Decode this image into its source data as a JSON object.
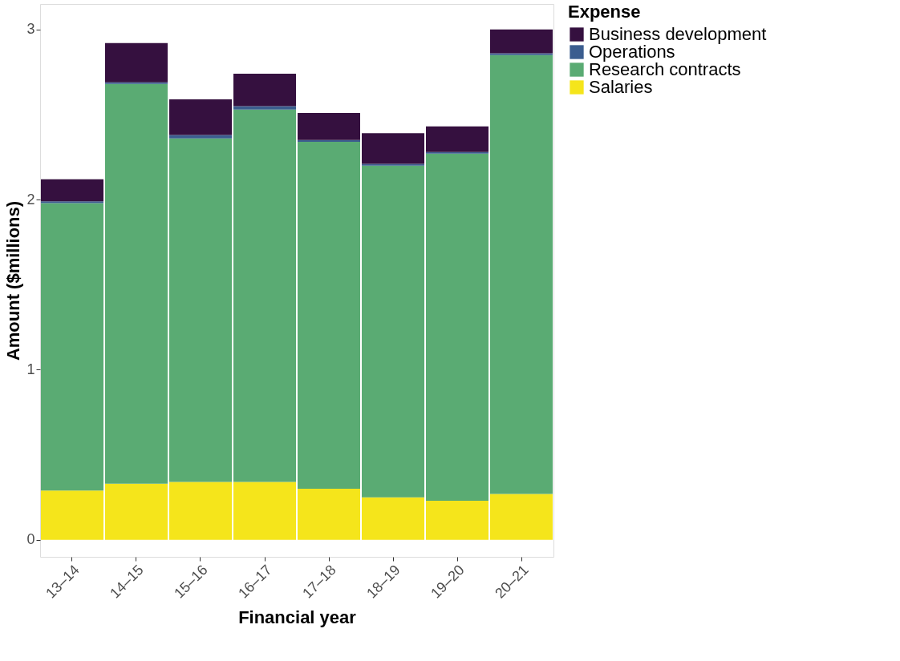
{
  "chart_data": {
    "type": "bar",
    "stacked": true,
    "xlabel": "Financial year",
    "ylabel": "Amount ($millions)",
    "legend_title": "Expense",
    "legend": "right",
    "grid": false,
    "categories": [
      "13–14",
      "14–15",
      "15–16",
      "16–17",
      "17–18",
      "18–19",
      "19–20",
      "20–21"
    ],
    "ylim": [
      -0.1,
      3.15
    ],
    "yticks": [
      0,
      1,
      2,
      3
    ],
    "series": [
      {
        "name": "Salaries",
        "color": "#f5e51b",
        "values": [
          0.29,
          0.33,
          0.34,
          0.34,
          0.3,
          0.25,
          0.23,
          0.27
        ]
      },
      {
        "name": "Research contracts",
        "color": "#5aab73",
        "values": [
          1.69,
          2.35,
          2.02,
          2.19,
          2.04,
          1.95,
          2.04,
          2.58
        ]
      },
      {
        "name": "Operations",
        "color": "#3b5d8f",
        "values": [
          0.01,
          0.01,
          0.02,
          0.02,
          0.01,
          0.01,
          0.01,
          0.01
        ]
      },
      {
        "name": "Business development",
        "color": "#35103f",
        "values": [
          0.13,
          0.23,
          0.21,
          0.19,
          0.16,
          0.18,
          0.15,
          0.14
        ]
      }
    ]
  }
}
